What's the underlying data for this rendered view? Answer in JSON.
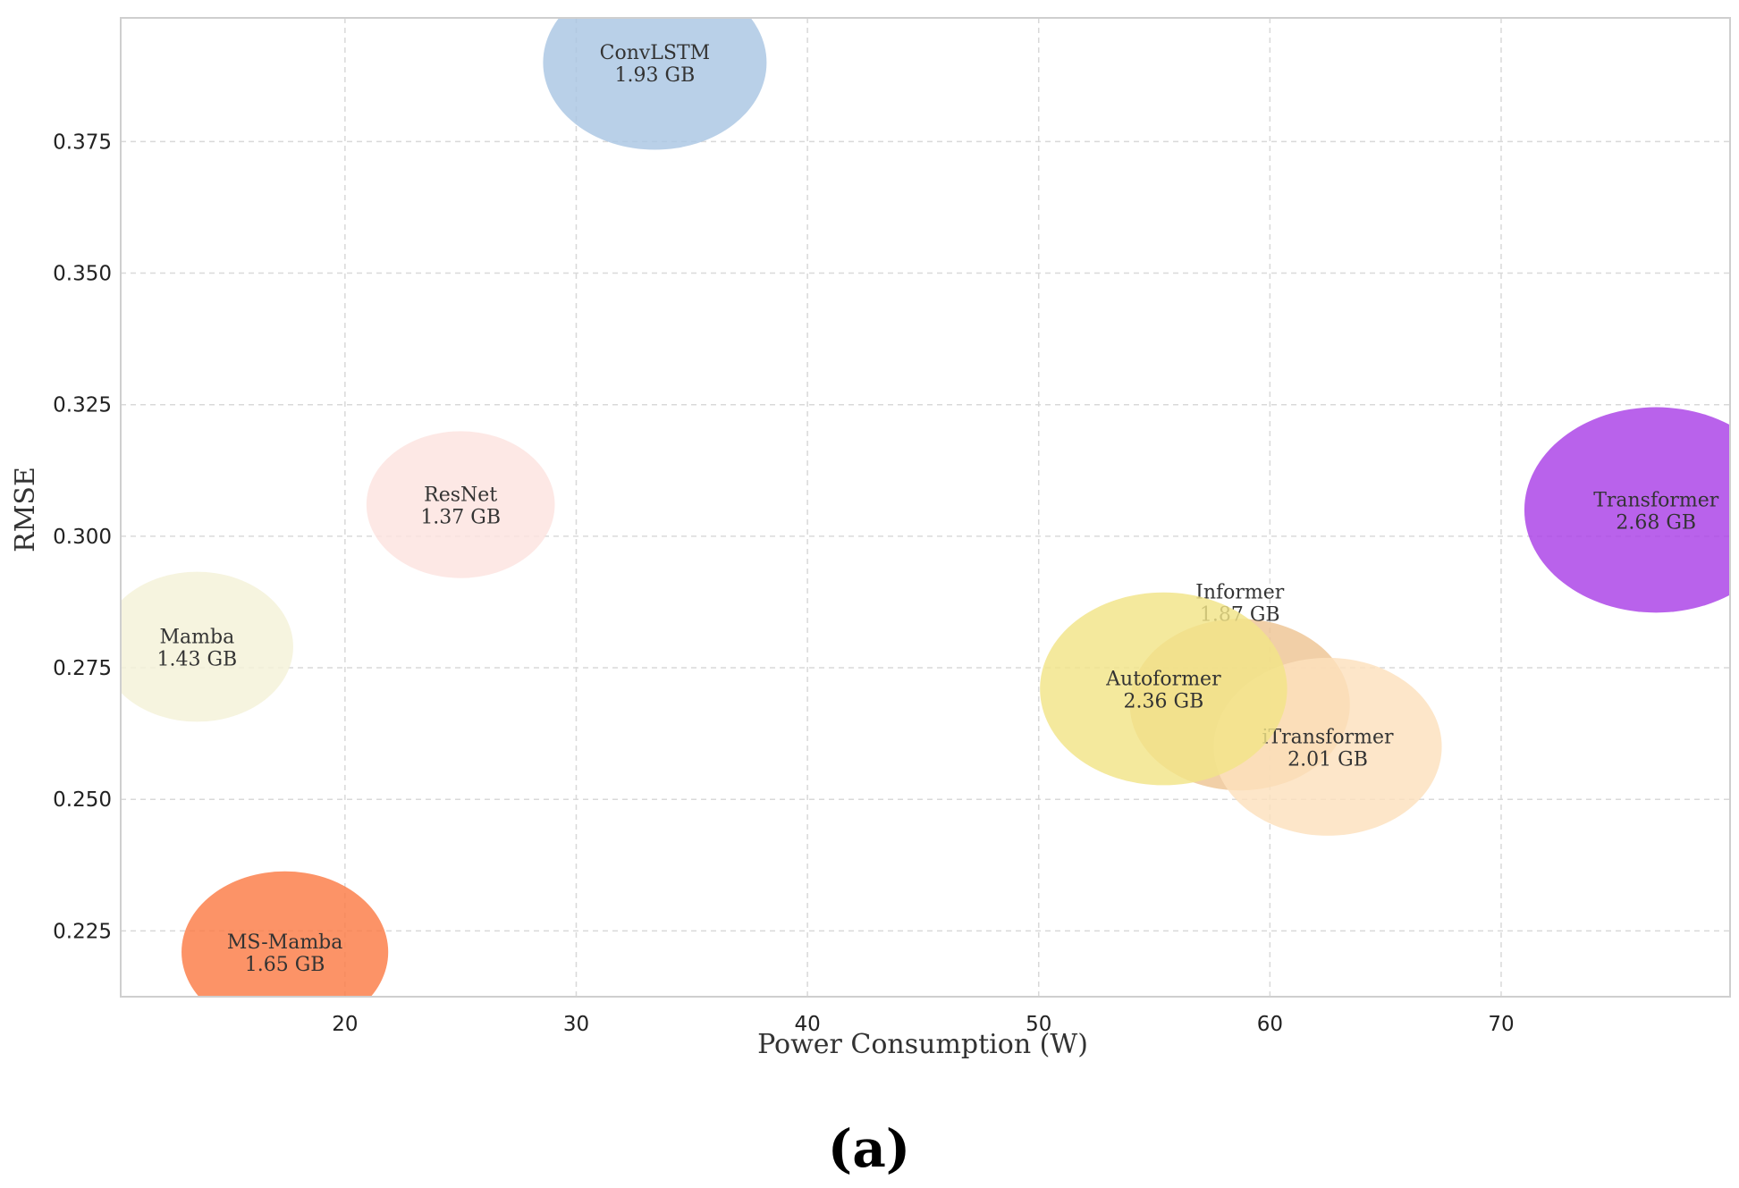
{
  "chart_data": {
    "type": "scatter",
    "subtype": "bubble",
    "panel_label": "(a)",
    "xlabel": "Power Consumption (W)",
    "ylabel": "RMSE",
    "xlim": [
      10.3,
      79.9
    ],
    "ylim": [
      0.2125,
      0.3985
    ],
    "xticks": [
      20,
      30,
      40,
      50,
      60,
      70
    ],
    "yticks": [
      0.225,
      0.25,
      0.275,
      0.3,
      0.325,
      0.35,
      0.375
    ],
    "ytick_labels": [
      "0.225",
      "0.250",
      "0.275",
      "0.300",
      "0.325",
      "0.350",
      "0.375"
    ],
    "grid": true,
    "size_unit": "GB",
    "points": [
      {
        "name": "ConvLSTM",
        "x": 33.4,
        "y": 0.39,
        "size": 1.93,
        "size_label": "1.93 GB",
        "color": "#a9c6e3"
      },
      {
        "name": "ResNet",
        "x": 25.0,
        "y": 0.306,
        "size": 1.37,
        "size_label": "1.37 GB",
        "color": "#fde3df"
      },
      {
        "name": "Mamba",
        "x": 13.6,
        "y": 0.279,
        "size": 1.43,
        "size_label": "1.43 GB",
        "color": "#f4f1d8"
      },
      {
        "name": "MS-Mamba",
        "x": 17.4,
        "y": 0.221,
        "size": 1.65,
        "size_label": "1.65 GB",
        "color": "#fb7b45"
      },
      {
        "name": "Informer",
        "x": 58.7,
        "y": 0.268,
        "size": 1.87,
        "size_label": "1.87 GB",
        "color": "#eec494"
      },
      {
        "name": "iTransformer",
        "x": 62.5,
        "y": 0.26,
        "size": 2.01,
        "size_label": "2.01 GB",
        "color": "#fde1bd"
      },
      {
        "name": "Autoformer",
        "x": 55.4,
        "y": 0.271,
        "size": 2.36,
        "size_label": "2.36 GB",
        "color": "#f1e487"
      },
      {
        "name": "Transformer",
        "x": 76.7,
        "y": 0.305,
        "size": 2.68,
        "size_label": "2.68 GB",
        "color": "#a93fe6"
      }
    ]
  }
}
